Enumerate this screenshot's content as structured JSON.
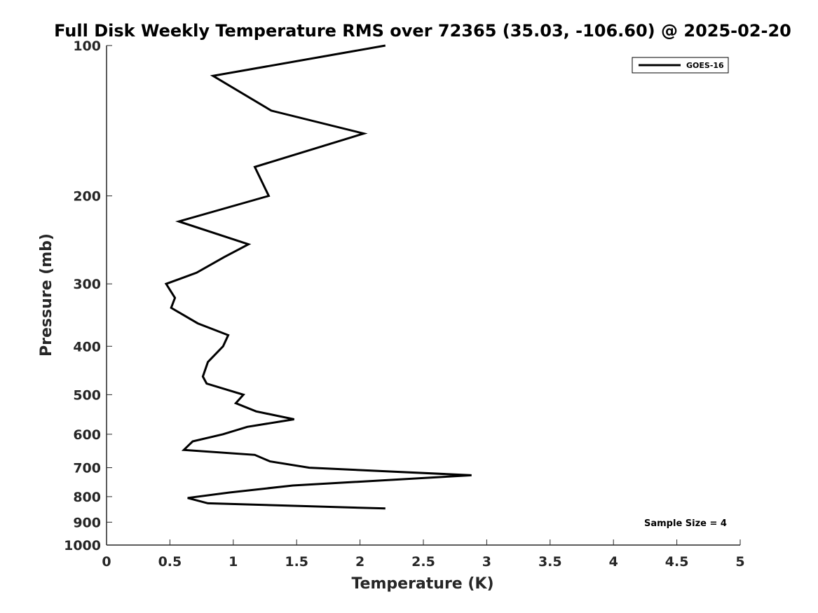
{
  "chart_data": {
    "type": "line",
    "title": "Full Disk Weekly Temperature RMS over 72365 (35.03, -106.60) @ 2025-02-20",
    "xlabel": "Temperature (K)",
    "ylabel": "Pressure (mb)",
    "xlim": [
      0,
      5
    ],
    "ylim": [
      100,
      1000
    ],
    "yscale": "log",
    "y_reversed": true,
    "x_ticks": [
      0,
      0.5,
      1,
      1.5,
      2,
      2.5,
      3,
      3.5,
      4,
      4.5,
      5
    ],
    "x_tick_labels": [
      "0",
      "0.5",
      "1",
      "1.5",
      "2",
      "2.5",
      "3",
      "3.5",
      "4",
      "4.5",
      "5"
    ],
    "y_ticks": [
      100,
      200,
      300,
      400,
      500,
      600,
      700,
      800,
      900,
      1000
    ],
    "y_tick_labels": [
      "100",
      "200",
      "300",
      "400",
      "500",
      "600",
      "700",
      "800",
      "900",
      "1000"
    ],
    "grid": false,
    "legend_position": "top-right",
    "annotation": "Sample Size = 4",
    "series": [
      {
        "name": "GOES-16",
        "color": "#000000",
        "points": [
          {
            "x": 2.2,
            "y": 100
          },
          {
            "x": 0.84,
            "y": 115
          },
          {
            "x": 1.3,
            "y": 135
          },
          {
            "x": 2.03,
            "y": 150
          },
          {
            "x": 1.17,
            "y": 175
          },
          {
            "x": 1.28,
            "y": 200
          },
          {
            "x": 0.57,
            "y": 225
          },
          {
            "x": 1.12,
            "y": 250
          },
          {
            "x": 0.93,
            "y": 265
          },
          {
            "x": 0.71,
            "y": 285
          },
          {
            "x": 0.47,
            "y": 300
          },
          {
            "x": 0.54,
            "y": 320
          },
          {
            "x": 0.51,
            "y": 335
          },
          {
            "x": 0.72,
            "y": 360
          },
          {
            "x": 0.96,
            "y": 380
          },
          {
            "x": 0.92,
            "y": 400
          },
          {
            "x": 0.8,
            "y": 430
          },
          {
            "x": 0.76,
            "y": 460
          },
          {
            "x": 0.79,
            "y": 475
          },
          {
            "x": 1.08,
            "y": 500
          },
          {
            "x": 1.02,
            "y": 520
          },
          {
            "x": 1.18,
            "y": 540
          },
          {
            "x": 1.48,
            "y": 560
          },
          {
            "x": 1.11,
            "y": 580
          },
          {
            "x": 0.92,
            "y": 600
          },
          {
            "x": 0.68,
            "y": 620
          },
          {
            "x": 0.61,
            "y": 645
          },
          {
            "x": 1.17,
            "y": 660
          },
          {
            "x": 1.29,
            "y": 680
          },
          {
            "x": 1.6,
            "y": 700
          },
          {
            "x": 2.88,
            "y": 725
          },
          {
            "x": 1.47,
            "y": 760
          },
          {
            "x": 0.97,
            "y": 785
          },
          {
            "x": 0.64,
            "y": 805
          },
          {
            "x": 0.8,
            "y": 825
          },
          {
            "x": 2.2,
            "y": 845
          }
        ]
      }
    ]
  }
}
